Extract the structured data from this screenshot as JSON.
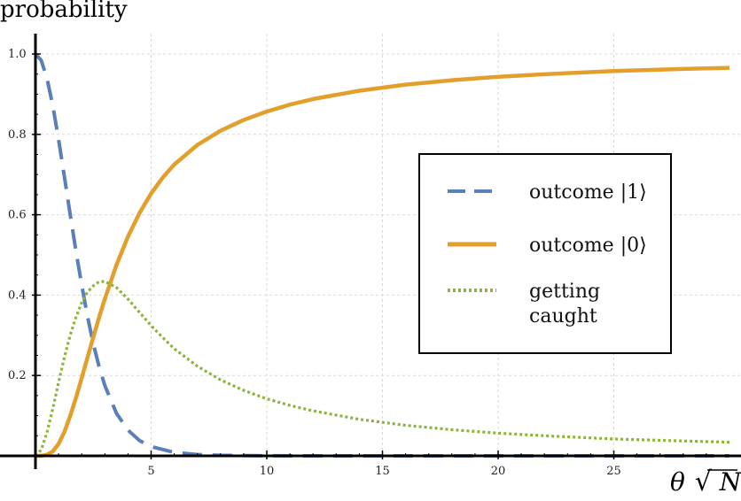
{
  "chart_data": {
    "type": "line",
    "title": "",
    "ylabel": "probability",
    "xlabel": "θ√N",
    "xlabel_parts": {
      "theta": "θ",
      "sqrt": "√",
      "n": "N"
    },
    "xlim": [
      0,
      30
    ],
    "ylim": [
      0,
      1.05
    ],
    "grid": true,
    "legend_placement": "center-right",
    "x_ticks": [
      5,
      10,
      15,
      20,
      25
    ],
    "x_tick_labels": [
      "5",
      "10",
      "15",
      "20",
      "25"
    ],
    "y_ticks": [
      0.2,
      0.4,
      0.6,
      0.8,
      1.0
    ],
    "y_tick_labels": [
      "0.2",
      "0.4",
      "0.6",
      "0.8",
      "1.0"
    ],
    "series": [
      {
        "name": "outcome |1⟩",
        "style": "dashed",
        "color": "#5b7fb8",
        "x": [
          0,
          0.25,
          0.5,
          0.75,
          1,
          1.25,
          1.5,
          1.75,
          2,
          2.25,
          2.5,
          2.75,
          3,
          3.5,
          4,
          4.5,
          5,
          6,
          7,
          8,
          10,
          12,
          15,
          20,
          25,
          30
        ],
        "values": [
          1.0,
          0.984,
          0.939,
          0.871,
          0.787,
          0.695,
          0.601,
          0.51,
          0.425,
          0.347,
          0.279,
          0.222,
          0.175,
          0.106,
          0.064,
          0.038,
          0.023,
          0.0086,
          0.0033,
          0.0013,
          0.0002,
          0.0,
          0.0,
          0.0,
          0.0,
          0.0
        ]
      },
      {
        "name": "outcome |0⟩",
        "style": "solid",
        "color": "#e39f2b",
        "x": [
          0,
          0.25,
          0.5,
          0.75,
          1,
          1.25,
          1.5,
          1.75,
          2,
          2.25,
          2.5,
          2.75,
          3,
          3.5,
          4,
          4.5,
          5,
          5.5,
          6,
          7,
          8,
          9,
          10,
          11,
          12,
          14,
          16,
          18,
          20,
          22,
          25,
          28,
          30
        ],
        "values": [
          0.0,
          0.0002,
          0.0026,
          0.0112,
          0.0298,
          0.0596,
          0.0988,
          0.1444,
          0.1939,
          0.2448,
          0.2954,
          0.3443,
          0.3908,
          0.4747,
          0.5457,
          0.6045,
          0.6528,
          0.6924,
          0.7249,
          0.7737,
          0.809,
          0.8358,
          0.8569,
          0.8741,
          0.8879,
          0.9086,
          0.9237,
          0.9347,
          0.9433,
          0.9497,
          0.9577,
          0.9627,
          0.9657
        ]
      },
      {
        "name": "getting caught",
        "name_lines": [
          "getting",
          "caught"
        ],
        "style": "dotted",
        "color": "#8cb33a",
        "x": [
          0,
          0.25,
          0.5,
          0.75,
          1,
          1.25,
          1.5,
          1.75,
          2,
          2.25,
          2.5,
          2.75,
          3,
          3.5,
          4,
          4.5,
          5,
          5.5,
          6,
          7,
          8,
          9,
          10,
          11,
          12,
          14,
          16,
          18,
          20,
          22,
          25,
          28,
          30
        ],
        "values": [
          0.0,
          0.0154,
          0.0585,
          0.1175,
          0.183,
          0.2452,
          0.3001,
          0.345,
          0.381,
          0.408,
          0.423,
          0.4335,
          0.434,
          0.419,
          0.39,
          0.357,
          0.324,
          0.2945,
          0.2665,
          0.223,
          0.189,
          0.163,
          0.142,
          0.1255,
          0.112,
          0.091,
          0.076,
          0.065,
          0.0565,
          0.05,
          0.042,
          0.037,
          0.034
        ]
      }
    ]
  }
}
